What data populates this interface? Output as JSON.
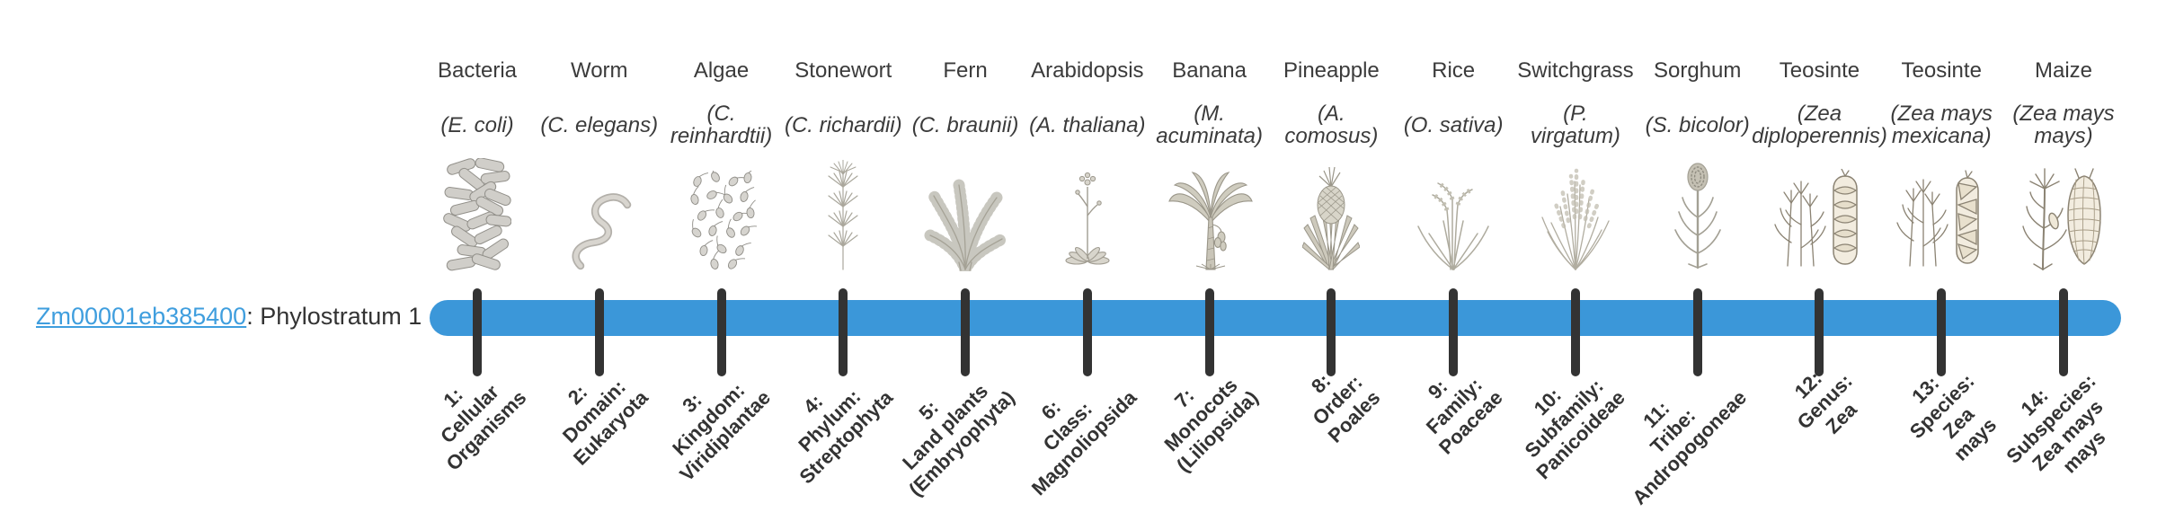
{
  "gene": {
    "id": "Zm00001eb385400",
    "suffix": ": Phylostratum 1"
  },
  "colors": {
    "bar": "#3b97d9",
    "tick": "#333333",
    "link": "#3f9ede",
    "text": "#3a3a3a"
  },
  "strata": [
    {
      "name": "Bacteria",
      "species_lines": [
        "(E. coli)"
      ],
      "icon": "bacteria",
      "stratum_lines": [
        "1:",
        "Cellular",
        "Organisms"
      ]
    },
    {
      "name": "Worm",
      "species_lines": [
        "(C. elegans)"
      ],
      "icon": "worm",
      "stratum_lines": [
        "2:",
        "Domain:",
        "Eukaryota"
      ]
    },
    {
      "name": "Algae",
      "species_lines": [
        "(C.",
        "reinhardtii)"
      ],
      "icon": "algae",
      "stratum_lines": [
        "3:",
        "Kingdom:",
        "Viridiplantae"
      ]
    },
    {
      "name": "Stonewort",
      "species_lines": [
        "(C. richardii)"
      ],
      "icon": "stonewort",
      "stratum_lines": [
        "4:",
        "Phylum:",
        "Streptophyta"
      ]
    },
    {
      "name": "Fern",
      "species_lines": [
        "(C. braunii)"
      ],
      "icon": "fern",
      "stratum_lines": [
        "5:",
        "Land plants",
        "(Embryophyta)"
      ]
    },
    {
      "name": "Arabidopsis",
      "species_lines": [
        "(A. thaliana)"
      ],
      "icon": "arabidopsis",
      "stratum_lines": [
        "6:",
        "Class:",
        "Magnoliopsida"
      ]
    },
    {
      "name": "Banana",
      "species_lines": [
        "(M.",
        "acuminata)"
      ],
      "icon": "banana",
      "stratum_lines": [
        "7:",
        "Monocots",
        "(Liliopsida)"
      ]
    },
    {
      "name": "Pineapple",
      "species_lines": [
        "(A.",
        "comosus)"
      ],
      "icon": "pineapple",
      "stratum_lines": [
        "8:",
        "Order:",
        "Poales"
      ]
    },
    {
      "name": "Rice",
      "species_lines": [
        "(O. sativa)"
      ],
      "icon": "rice",
      "stratum_lines": [
        "9:",
        "Family:",
        "Poaceae"
      ]
    },
    {
      "name": "Switchgrass",
      "species_lines": [
        "(P.",
        "virgatum)"
      ],
      "icon": "switchgrass",
      "stratum_lines": [
        "10:",
        "Subfamily:",
        "Panicoideae"
      ]
    },
    {
      "name": "Sorghum",
      "species_lines": [
        "(S. bicolor)"
      ],
      "icon": "sorghum",
      "stratum_lines": [
        "11:",
        "Tribe:",
        "Andropogoneae"
      ]
    },
    {
      "name": "Teosinte",
      "species_lines": [
        "(Zea",
        "diploperennis)"
      ],
      "icon": "teosinte1",
      "stratum_lines": [
        "12:",
        "Genus:",
        "Zea"
      ]
    },
    {
      "name": "Teosinte",
      "species_lines": [
        "(Zea mays",
        "mexicana)"
      ],
      "icon": "teosinte2",
      "stratum_lines": [
        "13:",
        "Species:",
        "Zea",
        "mays"
      ]
    },
    {
      "name": "Maize",
      "species_lines": [
        "(Zea mays",
        "mays)"
      ],
      "icon": "maize",
      "stratum_lines": [
        "14:",
        "Subspecies:",
        "Zea mays",
        "mays"
      ]
    }
  ]
}
